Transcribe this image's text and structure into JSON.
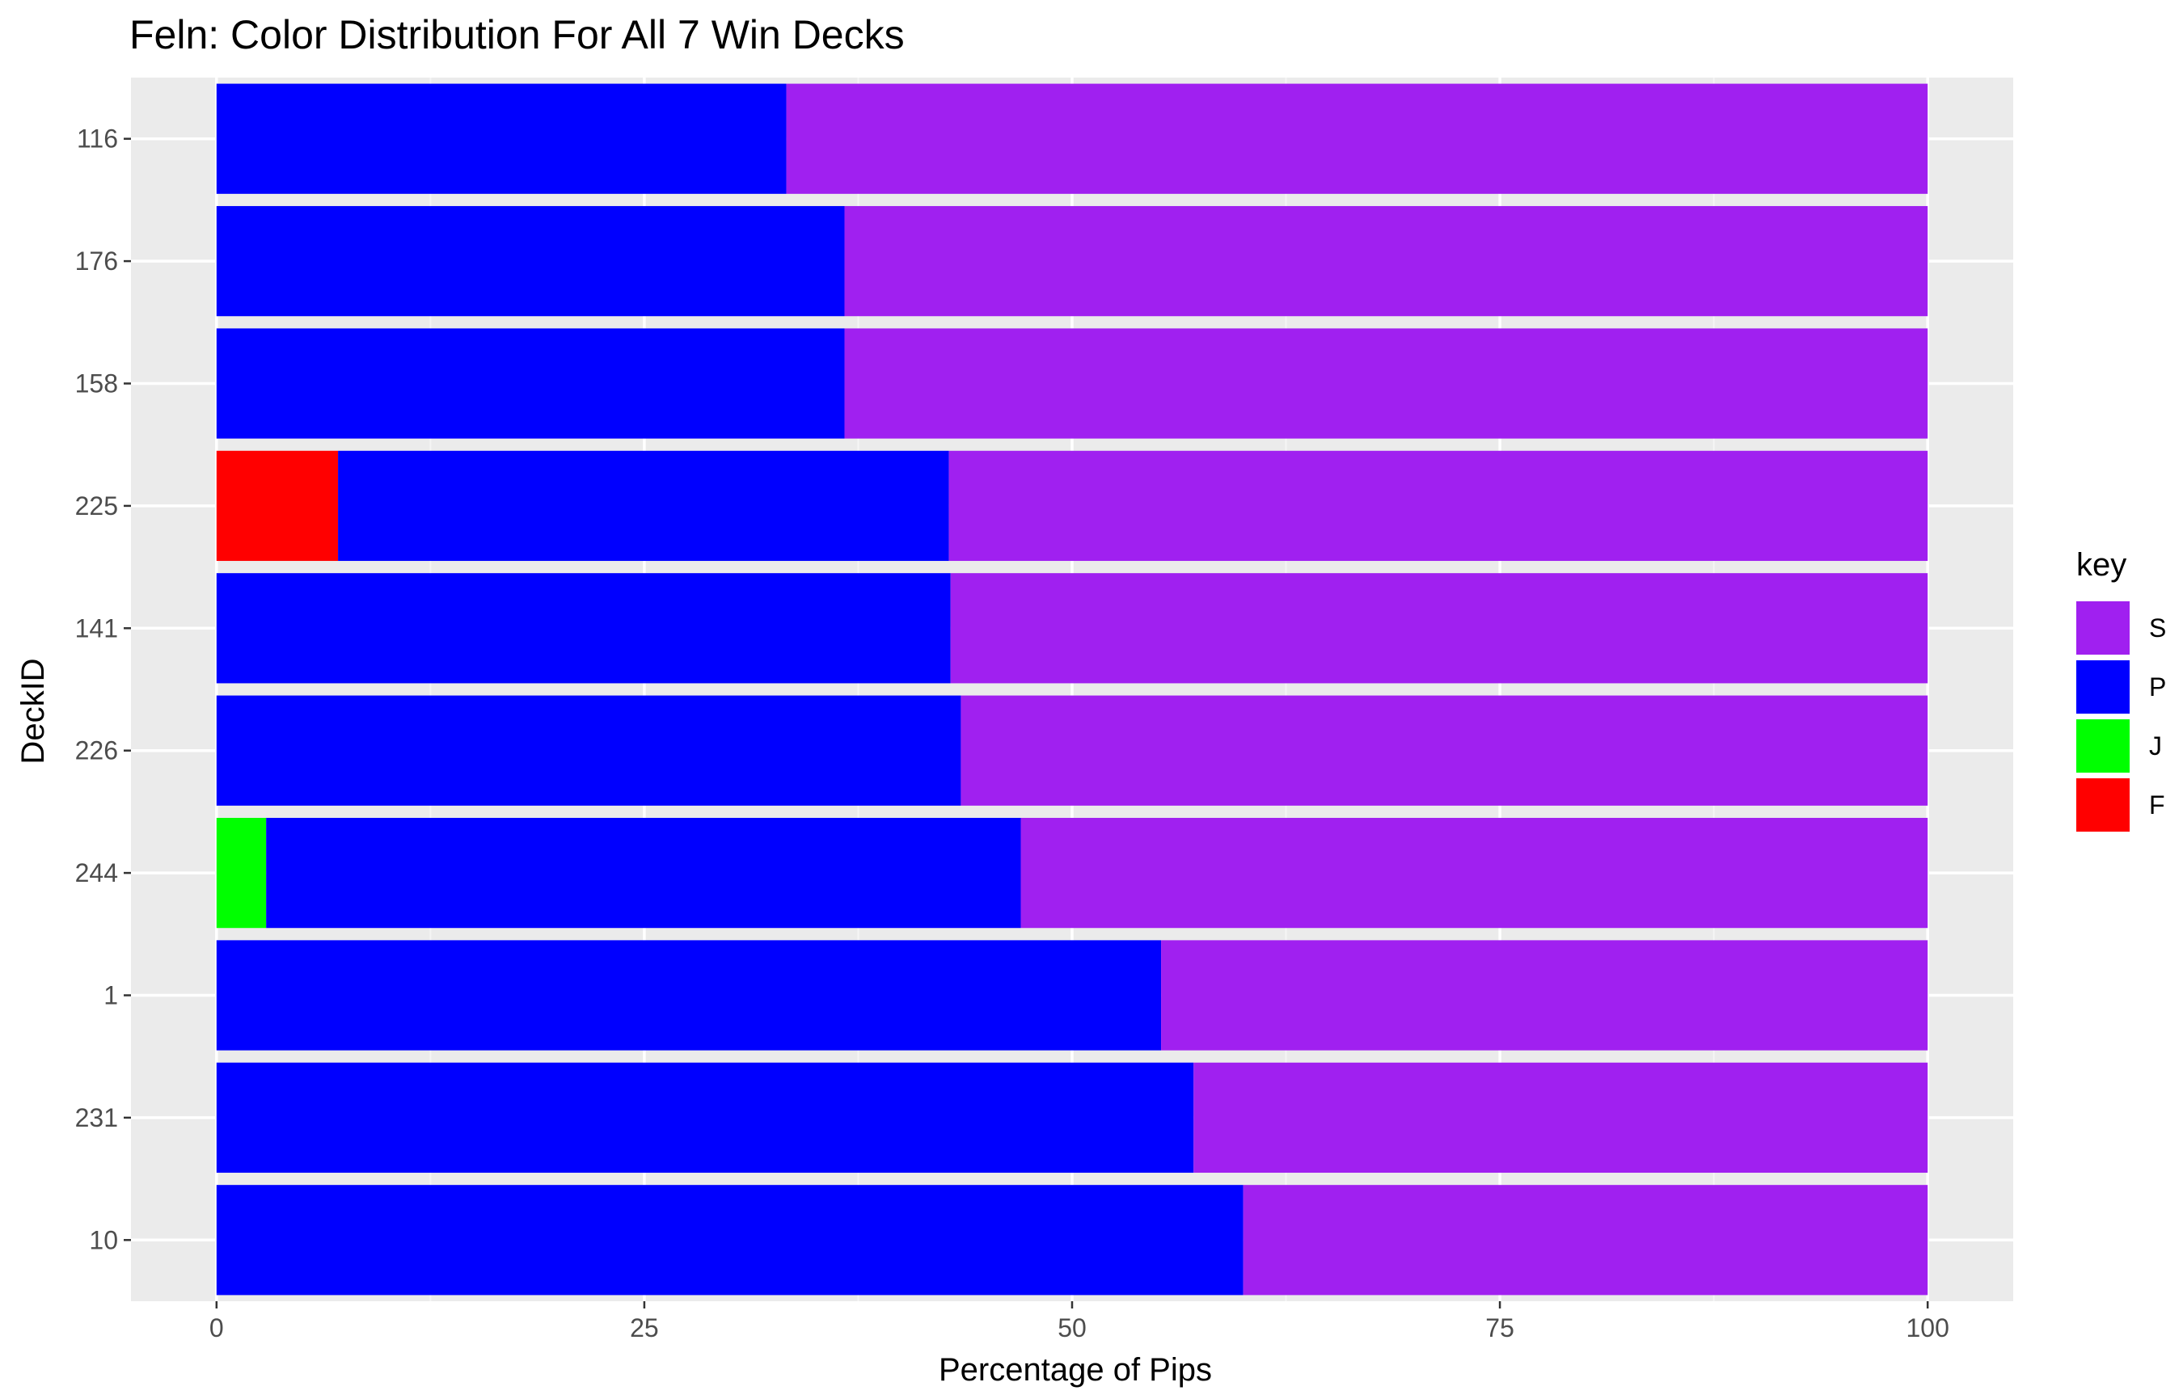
{
  "chart_data": {
    "type": "bar",
    "orientation": "horizontal",
    "stacked": true,
    "title": "Feln: Color Distribution For All 7 Win Decks",
    "xlabel": "Percentage of Pips",
    "ylabel": "DeckID",
    "xlim": [
      -5,
      105
    ],
    "xticks": [
      0,
      25,
      50,
      75,
      100
    ],
    "grid": true,
    "legend_position": "right",
    "legend_title": "key",
    "categories": [
      "116",
      "176",
      "158",
      "225",
      "141",
      "226",
      "244",
      "1",
      "231",
      "10"
    ],
    "series": [
      {
        "name": "F",
        "color": "#ff0000",
        "values": [
          0,
          0,
          0,
          7.1,
          0,
          0,
          0,
          0,
          0,
          0
        ]
      },
      {
        "name": "J",
        "color": "#00ff00",
        "values": [
          0,
          0,
          0,
          0,
          0,
          0,
          2.9,
          0,
          0,
          0
        ]
      },
      {
        "name": "P",
        "color": "#0000ff",
        "values": [
          33.3,
          36.7,
          36.7,
          35.7,
          42.9,
          43.5,
          44.1,
          55.2,
          57.1,
          60.0
        ]
      },
      {
        "name": "S",
        "color": "#a020f0",
        "values": [
          66.7,
          63.3,
          63.3,
          57.2,
          57.1,
          56.5,
          53.0,
          44.8,
          42.9,
          40.0
        ]
      }
    ],
    "legend_order": [
      "S",
      "P",
      "J",
      "F"
    ]
  },
  "colors": {
    "panel_background": "#ebebeb",
    "grid_major": "#ffffff",
    "grid_minor": "#f5f5f5"
  }
}
